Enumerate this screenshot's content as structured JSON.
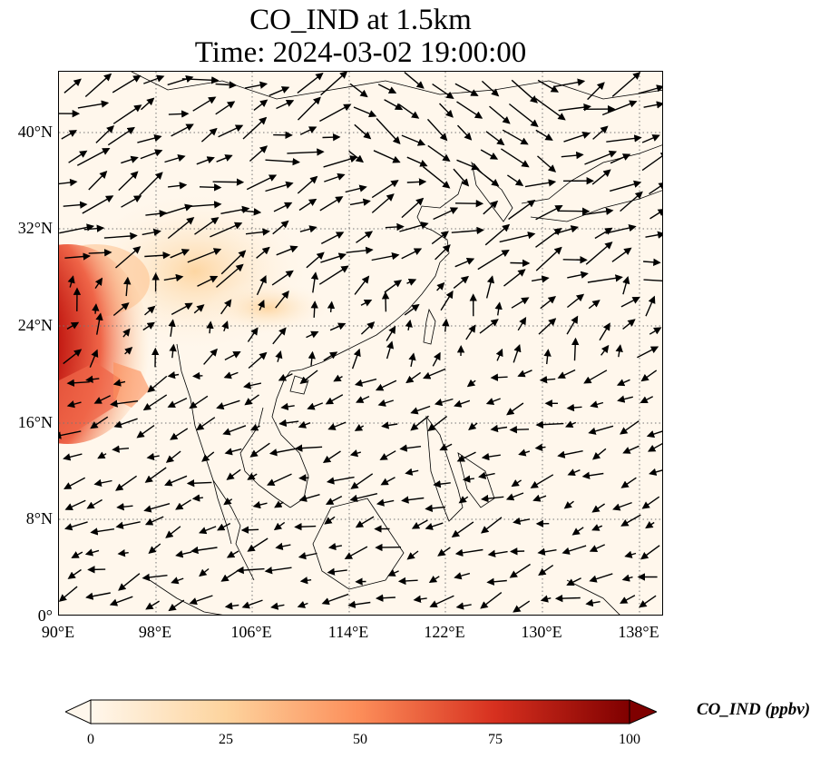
{
  "title": {
    "line1": "CO_IND at 1.5km",
    "line2": "Time: 2024-03-02 19:00:00"
  },
  "map": {
    "extent_lon": [
      90,
      140.3
    ],
    "extent_lat": [
      0,
      45
    ],
    "x_ticks": [
      "90°E",
      "98°E",
      "106°E",
      "114°E",
      "122°E",
      "130°E",
      "138°E"
    ],
    "y_ticks": [
      "0°",
      "8°N",
      "16°N",
      "24°N",
      "32°N",
      "40°N"
    ],
    "gridlines": true,
    "field": "CO_IND",
    "vectors": "wind"
  },
  "colorbar": {
    "label": "CO_IND (ppbv)",
    "ticks": [
      "0",
      "25",
      "50",
      "75",
      "100"
    ],
    "min": 0,
    "max": 100,
    "colormap": "OrRd",
    "colors": [
      "#fff7ec",
      "#fdd49e",
      "#fc8d59",
      "#d7301f",
      "#7f0000"
    ]
  }
}
